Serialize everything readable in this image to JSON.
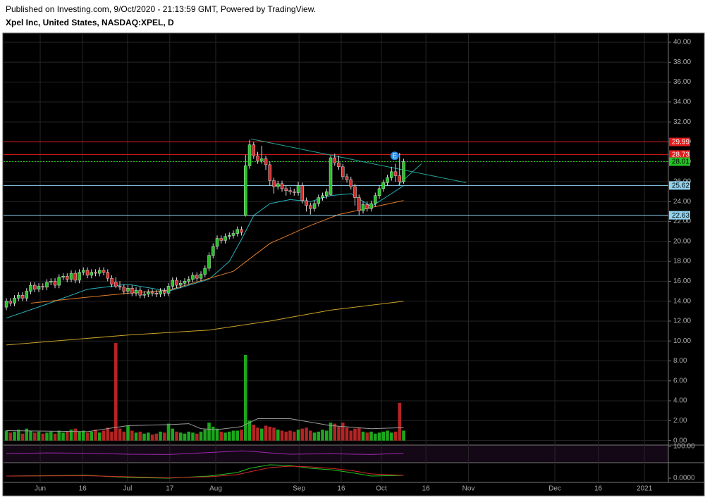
{
  "header": {
    "published": "Published on Investing.com, 9/Oct/2020 - 21:13:59 GMT, Powered by TradingView.",
    "symbol": "Xpel Inc, United States, NASDAQ:XPEL, D"
  },
  "chart_data": {
    "type": "candlestick",
    "xlim": [
      -0.7,
      163.3
    ],
    "xticks": [
      {
        "value": 8.35,
        "label": "Jun"
      },
      {
        "value": 18.8,
        "label": "16"
      },
      {
        "value": 29.9,
        "label": "Jul"
      },
      {
        "value": 40.3,
        "label": "17"
      },
      {
        "value": 51.65,
        "label": "Aug"
      },
      {
        "value": 72.2,
        "label": "Sep"
      },
      {
        "value": 82.6,
        "label": "16"
      },
      {
        "value": 92.5,
        "label": "Oct"
      },
      {
        "value": 103.5,
        "label": "16"
      },
      {
        "value": 114,
        "label": "Nov"
      },
      {
        "value": 135.3,
        "label": "Dec"
      },
      {
        "value": 146,
        "label": "16"
      },
      {
        "value": 157.4,
        "label": "2021"
      }
    ],
    "ylim": [
      -0.38,
      40.85
    ],
    "yticks": [
      {
        "value": 40,
        "label": "40.00"
      },
      {
        "value": 38,
        "label": "38.00"
      },
      {
        "value": 36,
        "label": "36.00"
      },
      {
        "value": 34,
        "label": "34.00"
      },
      {
        "value": 32,
        "label": "32.00"
      },
      {
        "value": 30,
        "label": "30.00"
      },
      {
        "value": 28,
        "label": "28.00"
      },
      {
        "value": 26,
        "label": "26.00"
      },
      {
        "value": 24,
        "label": "24.00"
      },
      {
        "value": 22,
        "label": "22.00"
      },
      {
        "value": 20,
        "label": "20.00"
      },
      {
        "value": 18,
        "label": "18.00"
      },
      {
        "value": 16,
        "label": "16.00"
      },
      {
        "value": 14,
        "label": "14.00"
      },
      {
        "value": 12,
        "label": "12.00"
      },
      {
        "value": 10,
        "label": "10.00"
      },
      {
        "value": 8,
        "label": "8.00"
      },
      {
        "value": 6,
        "label": "6.00"
      },
      {
        "value": 4,
        "label": "4.00"
      },
      {
        "value": 2,
        "label": "2.00"
      },
      {
        "value": 0,
        "label": "0.00"
      }
    ],
    "grid": true,
    "up_color": "#22c322",
    "down_color": "#d42a2a",
    "ohlc": [
      [
        13.4,
        14.3,
        13.1,
        14.0
      ],
      [
        14.0,
        14.3,
        13.5,
        13.8
      ],
      [
        13.8,
        14.6,
        13.5,
        14.3
      ],
      [
        14.3,
        14.9,
        14.0,
        14.6
      ],
      [
        14.6,
        14.9,
        14.0,
        14.3
      ],
      [
        14.3,
        15.3,
        14.0,
        15.0
      ],
      [
        15.0,
        15.9,
        14.7,
        15.6
      ],
      [
        15.6,
        15.9,
        14.9,
        15.2
      ],
      [
        15.2,
        15.8,
        14.9,
        15.5
      ],
      [
        15.5,
        15.8,
        15.1,
        15.4
      ],
      [
        15.4,
        16.2,
        15.1,
        15.9
      ],
      [
        15.9,
        16.3,
        15.6,
        16.0
      ],
      [
        16.0,
        16.3,
        15.3,
        15.6
      ],
      [
        15.6,
        16.7,
        15.3,
        16.4
      ],
      [
        16.4,
        16.8,
        16.1,
        16.5
      ],
      [
        16.5,
        16.8,
        15.9,
        16.2
      ],
      [
        16.2,
        17.1,
        15.9,
        16.8
      ],
      [
        16.8,
        17.1,
        15.8,
        16.1
      ],
      [
        16.1,
        17.2,
        15.8,
        16.9
      ],
      [
        16.9,
        17.4,
        16.6,
        17.1
      ],
      [
        17.1,
        17.4,
        16.3,
        16.6
      ],
      [
        16.6,
        17.2,
        16.3,
        16.9
      ],
      [
        16.9,
        17.2,
        16.5,
        16.8
      ],
      [
        16.8,
        17.4,
        16.5,
        17.1
      ],
      [
        17.1,
        17.4,
        16.6,
        16.9
      ],
      [
        16.9,
        17.2,
        16.0,
        16.3
      ],
      [
        16.3,
        16.6,
        15.4,
        15.7
      ],
      [
        15.9,
        16.4,
        15.3,
        15.5
      ],
      [
        15.5,
        16.0,
        15.1,
        15.4
      ],
      [
        15.4,
        15.7,
        14.7,
        15.0
      ],
      [
        15.0,
        15.6,
        14.7,
        15.3
      ],
      [
        15.3,
        15.6,
        14.5,
        14.8
      ],
      [
        14.8,
        15.4,
        14.5,
        15.1
      ],
      [
        15.1,
        15.4,
        14.3,
        14.6
      ],
      [
        14.6,
        15.0,
        14.3,
        14.7
      ],
      [
        14.7,
        15.2,
        14.4,
        14.9
      ],
      [
        14.9,
        15.2,
        14.5,
        14.8
      ],
      [
        14.8,
        15.1,
        14.4,
        14.7
      ],
      [
        14.7,
        15.3,
        14.4,
        15.0
      ],
      [
        15.0,
        15.3,
        14.5,
        14.8
      ],
      [
        14.8,
        15.8,
        14.5,
        15.5
      ],
      [
        15.5,
        16.4,
        15.2,
        16.1
      ],
      [
        16.1,
        16.4,
        15.3,
        15.6
      ],
      [
        15.6,
        16.1,
        15.3,
        15.8
      ],
      [
        15.8,
        16.3,
        15.5,
        16.0
      ],
      [
        16.0,
        16.5,
        15.7,
        16.2
      ],
      [
        16.2,
        16.9,
        15.9,
        16.6
      ],
      [
        16.6,
        16.9,
        16.0,
        16.3
      ],
      [
        16.3,
        17.0,
        16.0,
        16.7
      ],
      [
        16.7,
        17.6,
        16.4,
        17.3
      ],
      [
        17.3,
        18.9,
        17.0,
        18.6
      ],
      [
        18.6,
        19.8,
        18.3,
        19.5
      ],
      [
        19.5,
        20.6,
        19.2,
        20.3
      ],
      [
        20.3,
        20.6,
        19.8,
        20.1
      ],
      [
        20.1,
        20.8,
        19.8,
        20.5
      ],
      [
        20.5,
        20.9,
        20.2,
        20.6
      ],
      [
        20.6,
        21.1,
        20.3,
        20.8
      ],
      [
        20.8,
        21.5,
        20.5,
        21.2
      ],
      [
        21.2,
        21.5,
        20.6,
        20.9
      ],
      [
        22.6,
        28.7,
        22.5,
        27.6
      ],
      [
        27.6,
        30.2,
        27.3,
        29.7
      ],
      [
        29.7,
        30.0,
        28.3,
        28.6
      ],
      [
        28.6,
        29.0,
        27.8,
        28.1
      ],
      [
        28.1,
        29.6,
        27.8,
        28.3
      ],
      [
        28.3,
        28.6,
        27.2,
        27.7
      ],
      [
        27.7,
        28.0,
        25.6,
        26.1
      ],
      [
        26.1,
        26.4,
        24.8,
        25.5
      ],
      [
        25.5,
        26.1,
        25.2,
        25.8
      ],
      [
        25.8,
        26.1,
        25.0,
        25.3
      ],
      [
        25.3,
        25.6,
        24.6,
        25.1
      ],
      [
        25.1,
        25.5,
        24.7,
        25.0
      ],
      [
        25.0,
        25.3,
        24.6,
        24.9
      ],
      [
        24.9,
        26.0,
        24.6,
        25.6
      ],
      [
        25.6,
        25.9,
        23.8,
        24.1
      ],
      [
        24.1,
        24.4,
        23.0,
        23.6
      ],
      [
        23.6,
        23.9,
        22.7,
        23.3
      ],
      [
        23.3,
        24.1,
        23.0,
        23.8
      ],
      [
        23.8,
        24.7,
        23.5,
        24.4
      ],
      [
        24.4,
        24.9,
        24.1,
        24.6
      ],
      [
        24.6,
        25.3,
        24.3,
        25.0
      ],
      [
        24.7,
        28.6,
        24.6,
        28.4
      ],
      [
        28.4,
        28.8,
        27.6,
        27.9
      ],
      [
        27.9,
        28.6,
        27.2,
        27.5
      ],
      [
        27.5,
        27.8,
        26.2,
        26.5
      ],
      [
        26.5,
        26.8,
        25.9,
        26.2
      ],
      [
        26.2,
        26.5,
        25.2,
        25.5
      ],
      [
        25.5,
        25.8,
        23.6,
        24.4
      ],
      [
        24.4,
        24.7,
        22.6,
        23.1
      ],
      [
        23.1,
        24.0,
        22.8,
        23.7
      ],
      [
        23.7,
        24.0,
        23.0,
        23.3
      ],
      [
        23.3,
        24.1,
        23.0,
        23.8
      ],
      [
        23.8,
        24.9,
        23.5,
        24.6
      ],
      [
        24.6,
        25.6,
        24.3,
        25.3
      ],
      [
        25.3,
        26.2,
        25.0,
        25.9
      ],
      [
        25.9,
        26.7,
        25.6,
        26.4
      ],
      [
        26.4,
        27.5,
        26.1,
        27.0
      ],
      [
        27.0,
        27.8,
        26.0,
        26.6
      ],
      [
        26.6,
        28.9,
        25.6,
        26.0
      ],
      [
        26.0,
        28.3,
        25.8,
        28.01
      ]
    ],
    "volume": {
      "values": [
        1.0,
        0.8,
        0.9,
        1.1,
        0.7,
        1.2,
        1.0,
        0.8,
        0.9,
        0.7,
        0.8,
        0.9,
        0.7,
        1.0,
        0.8,
        0.9,
        1.1,
        1.2,
        0.9,
        1.0,
        0.8,
        0.9,
        1.1,
        0.8,
        1.0,
        1.3,
        0.9,
        9.8,
        1.2,
        0.9,
        1.5,
        1.0,
        0.8,
        0.9,
        0.7,
        0.8,
        0.6,
        0.7,
        0.9,
        0.8,
        1.7,
        1.2,
        0.9,
        0.8,
        0.7,
        0.9,
        0.8,
        0.7,
        0.9,
        1.1,
        1.8,
        1.4,
        1.2,
        0.9,
        0.8,
        0.9,
        1.0,
        1.0,
        1.1,
        8.6,
        2.0,
        1.6,
        1.3,
        1.2,
        1.5,
        1.4,
        1.3,
        1.1,
        1.0,
        0.9,
        1.0,
        0.9,
        1.1,
        1.2,
        1.3,
        1.0,
        0.8,
        0.9,
        1.1,
        1.0,
        1.8,
        1.7,
        1.4,
        1.8,
        1.3,
        1.0,
        1.2,
        1.3,
        0.9,
        0.8,
        0.9,
        0.7,
        0.8,
        0.9,
        1.0,
        0.8,
        0.9,
        3.8,
        1.0
      ],
      "average": {
        "x": [
          0,
          20,
          30,
          40,
          45,
          48,
          52,
          58,
          62,
          70,
          80,
          90,
          98
        ],
        "values": [
          1.0,
          0.9,
          1.5,
          1.6,
          1.7,
          1.2,
          1.1,
          1.4,
          2.2,
          2.2,
          1.5,
          1.2,
          1.3
        ],
        "color": "#9a9a9a"
      }
    },
    "moving_averages": [
      {
        "x": [
          0,
          10,
          20,
          30,
          40,
          50,
          55,
          58,
          61,
          65,
          70,
          75,
          80,
          85,
          90,
          95,
          98
        ],
        "values": [
          12.3,
          13.7,
          15.2,
          15.7,
          15.0,
          16.2,
          18.0,
          20.2,
          22.6,
          23.8,
          24.2,
          24.0,
          24.6,
          24.8,
          23.5,
          24.8,
          25.6
        ],
        "color": "#26b3bf"
      },
      {
        "x": [
          6,
          20,
          30,
          40,
          56,
          65,
          75,
          82,
          98
        ],
        "values": [
          13.8,
          14.4,
          14.8,
          15.1,
          17.0,
          19.8,
          21.6,
          22.7,
          24.1
        ],
        "color": "#e07b2a"
      },
      {
        "x": [
          0,
          30,
          50,
          65,
          80,
          98
        ],
        "values": [
          9.6,
          10.6,
          11.1,
          12.0,
          13.1,
          14.0
        ],
        "color": "#c9a227"
      }
    ],
    "levels": [
      {
        "value": 29.99,
        "color": "#e21b1b",
        "text_color": "#ffffff",
        "dash": false
      },
      {
        "value": 28.73,
        "color": "#e21b1b",
        "text_color": "#ffffff",
        "dash": false
      },
      {
        "value": 28.01,
        "color": "#22c322",
        "text_color": "#000000",
        "dash": true
      },
      {
        "value": 25.62,
        "color": "#8fd3f0",
        "text_color": "#000000",
        "dash": false
      },
      {
        "value": 22.63,
        "color": "#8fd3f0",
        "text_color": "#000000",
        "dash": false
      }
    ],
    "trendlines": [
      {
        "x": [
          60.3,
          113.4
        ],
        "y": [
          30.3,
          25.9
        ],
        "color": "#26a69a"
      },
      {
        "x": [
          96.7,
          102.4
        ],
        "y": [
          25.7,
          27.8
        ],
        "color": "#26a69a"
      }
    ],
    "event": {
      "x": 95.8,
      "y": 28.6,
      "label": "E",
      "color": "#1e88e5"
    },
    "panes": [
      {
        "ylim": [
          0,
          108
        ],
        "yticks": [
          {
            "value": 100,
            "label": "100.00"
          }
        ],
        "series": [
          {
            "x": [
              0,
              10,
              20,
              30,
              40,
              50,
              58,
              60,
              65,
              70,
              80,
              90,
              98
            ],
            "values": [
              55,
              60,
              58,
              52,
              50,
              62,
              72,
              70,
              60,
              52,
              55,
              50,
              58
            ],
            "color": "#9c27b0"
          }
        ]
      },
      {
        "ylim": [
          -0.6,
          2.2
        ],
        "yticks": [
          {
            "value": 0,
            "label": "0.0000"
          }
        ],
        "series": [
          {
            "x": [
              0,
              20,
              30,
              40,
              50,
              57,
              60,
              65,
              70,
              75,
              80,
              85,
              90,
              98
            ],
            "values": [
              0.3,
              0.4,
              0.1,
              0.0,
              0.3,
              0.8,
              1.4,
              1.9,
              1.8,
              1.4,
              1.2,
              0.8,
              0.3,
              0.4
            ],
            "color": "#22c322"
          },
          {
            "x": [
              0,
              20,
              30,
              40,
              50,
              57,
              60,
              65,
              70,
              75,
              80,
              85,
              90,
              98
            ],
            "values": [
              0.3,
              0.35,
              0.2,
              0.05,
              0.2,
              0.5,
              0.9,
              1.5,
              1.7,
              1.6,
              1.4,
              1.1,
              0.6,
              0.4
            ],
            "color": "#d42a2a"
          }
        ]
      }
    ]
  }
}
